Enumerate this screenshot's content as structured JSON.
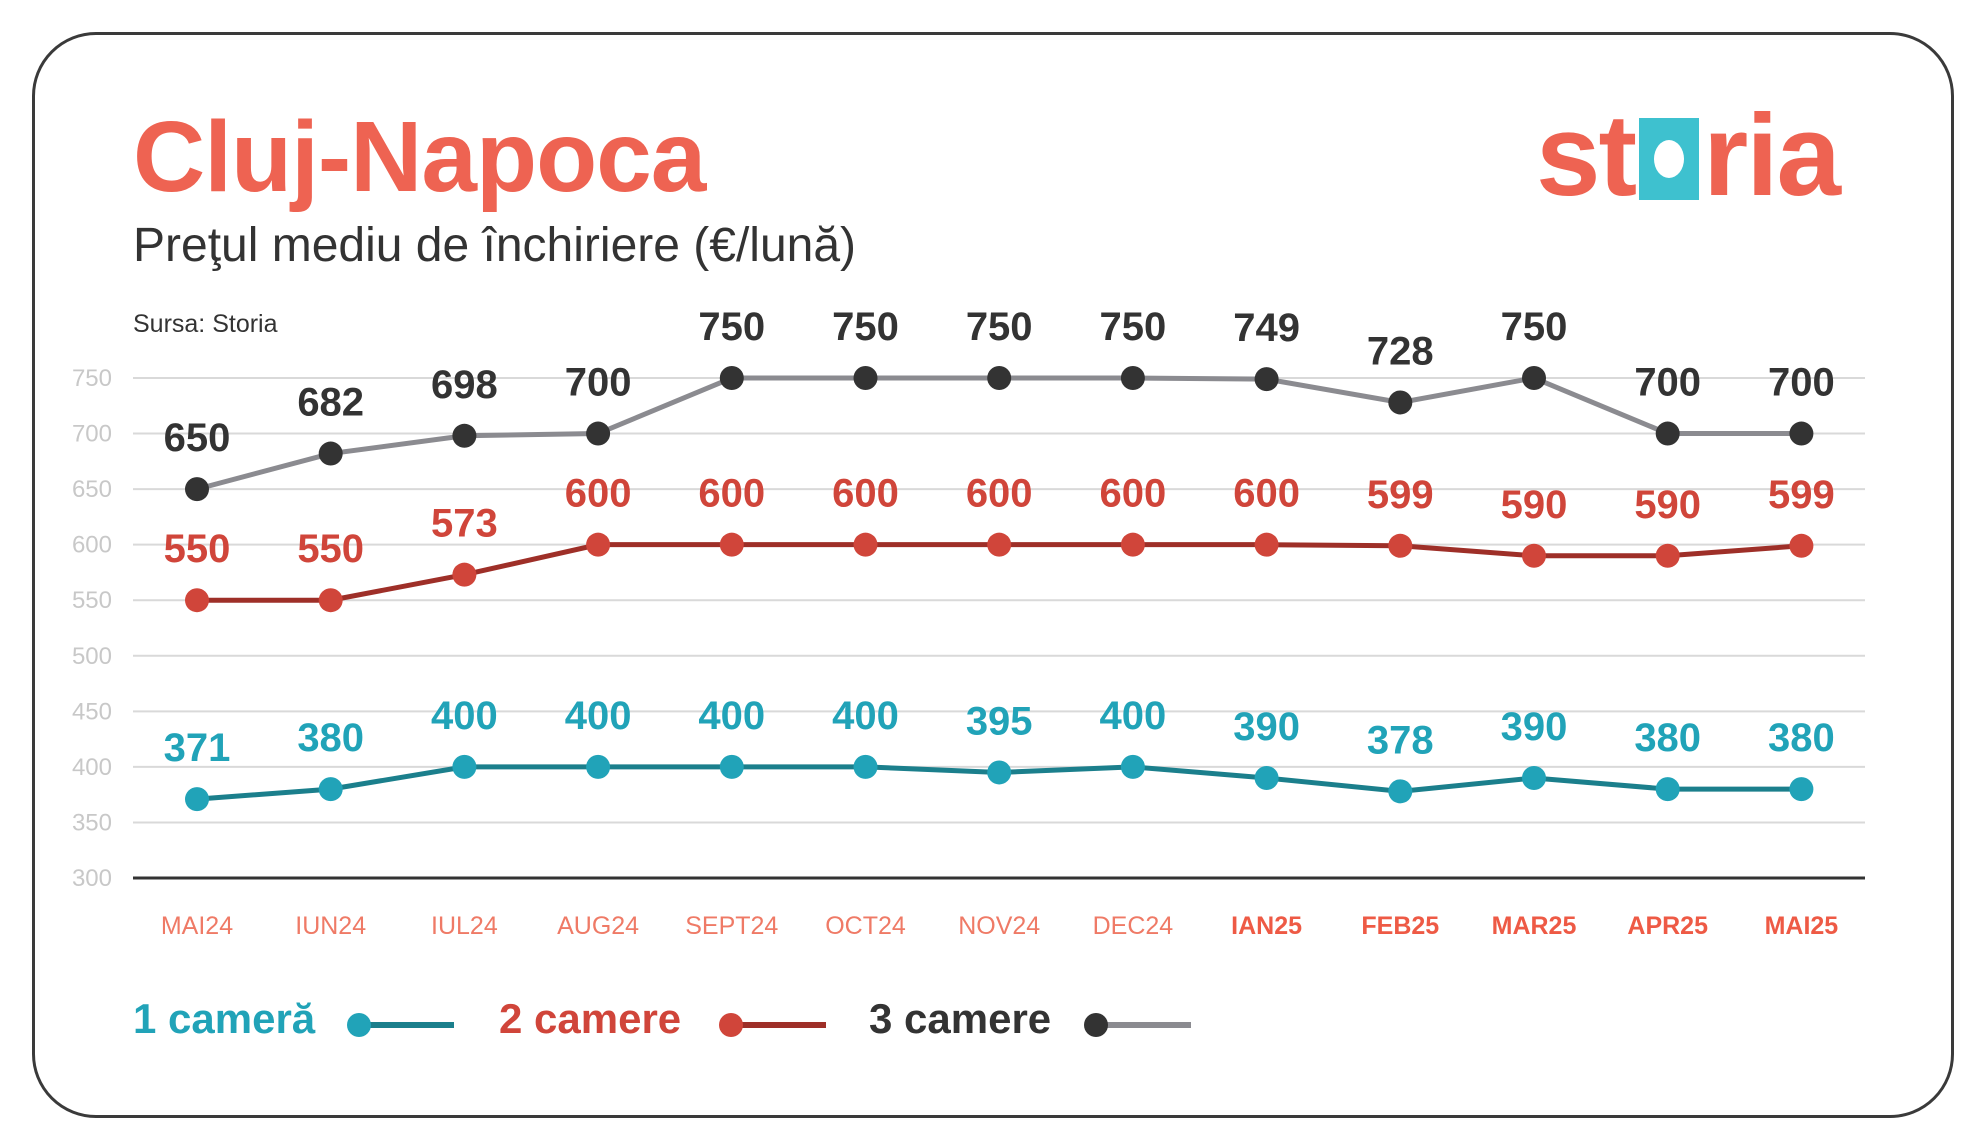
{
  "header": {
    "title": "Cluj-Napoca",
    "subtitle": "Preţul mediu de închiriere (€/lună)",
    "source": "Sursa: Storia",
    "logo_text": "storia"
  },
  "colors": {
    "accent": "#ee6352",
    "logo_square": "#3ec1cf",
    "series_1_marker": "#21a3b8",
    "series_1_line": "#1b7f8c",
    "series_2_marker": "#d0453a",
    "series_2_line": "#9e2f28",
    "series_3_marker": "#333333",
    "series_3_line": "#8b8b90"
  },
  "chart_data": {
    "type": "line",
    "title": "Preţul mediu de închiriere (€/lună)",
    "xlabel": "",
    "ylabel": "",
    "categories": [
      "MAI24",
      "IUN24",
      "IUL24",
      "AUG24",
      "SEPT24",
      "OCT24",
      "NOV24",
      "DEC24",
      "IAN25",
      "FEB25",
      "MAR25",
      "APR25",
      "MAI25"
    ],
    "bold_categories_from": 8,
    "yticks": [
      750,
      700,
      650,
      600,
      550,
      500,
      450,
      400,
      350,
      300
    ],
    "ylim": [
      300,
      750
    ],
    "grid": true,
    "legend_position": "bottom-left",
    "series": [
      {
        "name": "1 cameră",
        "values": [
          371,
          380,
          400,
          400,
          400,
          400,
          395,
          400,
          390,
          378,
          390,
          380,
          380
        ]
      },
      {
        "name": "2 camere",
        "values": [
          550,
          550,
          573,
          600,
          600,
          600,
          600,
          600,
          600,
          599,
          590,
          590,
          599
        ]
      },
      {
        "name": "3 camere",
        "values": [
          650,
          682,
          698,
          700,
          750,
          750,
          750,
          750,
          749,
          728,
          750,
          700,
          700
        ]
      }
    ]
  }
}
